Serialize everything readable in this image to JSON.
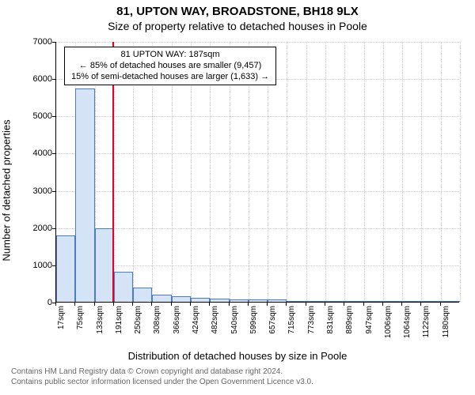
{
  "titles": {
    "main": "81, UPTON WAY, BROADSTONE, BH18 9LX",
    "sub": "Size of property relative to detached houses in Poole"
  },
  "axes": {
    "ylabel": "Number of detached properties",
    "xlabel": "Distribution of detached houses by size in Poole",
    "ylim": [
      0,
      7000
    ],
    "ytick_step": 1000,
    "grid_color": "#b0b0b0"
  },
  "histogram": {
    "type": "histogram",
    "x_start": 17,
    "bin_width": 58,
    "n_bins": 21,
    "counts": [
      1780,
      5730,
      1980,
      800,
      380,
      200,
      140,
      100,
      80,
      70,
      70,
      60,
      30,
      10,
      5,
      5,
      3,
      2,
      2,
      1,
      1
    ],
    "bar_fill": "#d5e3f7",
    "bar_stroke": "#4a7bc8",
    "background": "#ffffff"
  },
  "xticks": {
    "labels": [
      "17sqm",
      "75sqm",
      "133sqm",
      "191sqm",
      "250sqm",
      "308sqm",
      "366sqm",
      "424sqm",
      "482sqm",
      "540sqm",
      "599sqm",
      "657sqm",
      "715sqm",
      "773sqm",
      "831sqm",
      "889sqm",
      "947sqm",
      "1006sqm",
      "1064sqm",
      "1122sqm",
      "1180sqm"
    ]
  },
  "marker": {
    "x_value": 187,
    "color": "#e4002b"
  },
  "annotation": {
    "line1": "81 UPTON WAY: 187sqm",
    "line2": "← 85% of detached houses are smaller (9,457)",
    "line3": "15% of semi-detached houses are larger (1,633) →"
  },
  "footer": {
    "line1": "Contains HM Land Registry data © Crown copyright and database right 2024.",
    "line2": "Contains public sector information licensed under the Open Government Licence v3.0."
  }
}
